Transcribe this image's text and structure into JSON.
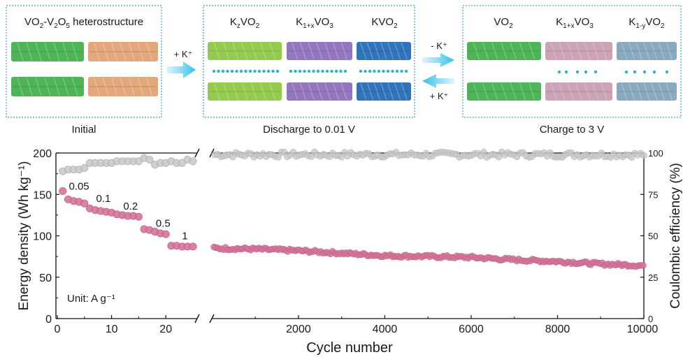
{
  "schematic": {
    "panels": [
      {
        "name": "initial",
        "title_parts": [
          "VO",
          "2",
          "-V",
          "2",
          "O",
          "5",
          " heterostructure"
        ],
        "caption": "Initial"
      },
      {
        "name": "discharge",
        "labels": [
          [
            "K",
            "z",
            "VO",
            "2"
          ],
          [
            "K",
            "1+x",
            "VO",
            "3"
          ],
          [
            "KVO",
            "2"
          ]
        ],
        "caption": "Discharge to 0.01 V"
      },
      {
        "name": "charge",
        "labels": [
          [
            "VO",
            "2"
          ],
          [
            "K",
            "1+x",
            "VO",
            "3"
          ],
          [
            "K",
            "1-y",
            "VO",
            "2"
          ]
        ],
        "caption": "Charge to 3 V"
      }
    ],
    "arrow_labels": {
      "first": "+ K⁺",
      "charge": "- K⁺",
      "discharge": "+ K⁺"
    },
    "colors": {
      "green_layer": "#3fae4a",
      "orange_layer": "#e0a070",
      "lime_layer": "#8cc63f",
      "purple_layer": "#8a6bb8",
      "blue_layer": "#1f68b4",
      "pink_layer": "#c79ab0",
      "steel_layer": "#7fa3b8",
      "k_ion": "#2ab5c0",
      "arrow": "#35c1ea"
    }
  },
  "chart_data": {
    "type": "scatter",
    "title": "",
    "xlabel": "Cycle number",
    "ylabel_left": "Energy density (Wh kg⁻¹)",
    "ylabel_right": "Coulombic efficiency (%)",
    "ylim_left": [
      0,
      200
    ],
    "ylim_right": [
      0,
      100
    ],
    "left_xlim": [
      0,
      25
    ],
    "right_xlim": [
      25,
      10000
    ],
    "left_xticks": [
      "0",
      "10",
      "20"
    ],
    "right_xticks": [
      "2000",
      "4000",
      "6000",
      "8000",
      "10000"
    ],
    "left_yticks": [
      "0",
      "50",
      "100",
      "150",
      "200"
    ],
    "right_yticks": [
      "0",
      "25",
      "50",
      "75",
      "100"
    ],
    "annotation_unit": "Unit: A g⁻¹",
    "rate_labels": [
      {
        "label": "0.05",
        "cycle": 4,
        "energy": 160
      },
      {
        "label": "0.1",
        "cycle": 8.5,
        "energy": 145
      },
      {
        "label": "0.2",
        "cycle": 13.5,
        "energy": 136
      },
      {
        "label": "0.5",
        "cycle": 19.5,
        "energy": 115
      },
      {
        "label": "1",
        "cycle": 23.5,
        "energy": 100
      }
    ],
    "series": [
      {
        "name": "Energy density",
        "axis": "left",
        "color": "#d4759a",
        "edge": "#b9547c",
        "rate_points": [
          [
            1,
            154
          ],
          [
            2,
            144
          ],
          [
            3,
            142
          ],
          [
            4,
            141
          ],
          [
            5,
            139
          ],
          [
            6,
            133
          ],
          [
            7,
            131
          ],
          [
            8,
            130
          ],
          [
            9,
            129
          ],
          [
            10,
            128
          ],
          [
            11,
            126
          ],
          [
            12,
            125
          ],
          [
            13,
            124
          ],
          [
            14,
            124
          ],
          [
            15,
            123
          ],
          [
            16,
            108
          ],
          [
            17,
            107
          ],
          [
            18,
            105
          ],
          [
            19,
            103
          ],
          [
            20,
            102
          ],
          [
            21,
            88
          ],
          [
            22,
            88
          ],
          [
            23,
            87
          ],
          [
            24,
            87
          ],
          [
            25,
            87
          ]
        ],
        "long_cycle_trend": [
          [
            25,
            85
          ],
          [
            1000,
            84
          ],
          [
            2000,
            82
          ],
          [
            3000,
            79
          ],
          [
            4000,
            76
          ],
          [
            5000,
            75
          ],
          [
            6000,
            74
          ],
          [
            7000,
            71
          ],
          [
            8000,
            69
          ],
          [
            9000,
            66
          ],
          [
            10000,
            64
          ]
        ]
      },
      {
        "name": "Coulombic efficiency",
        "axis": "right",
        "color": "#c8c8c8",
        "edge": "#a8a8a8",
        "rate_points": [
          [
            1,
            89
          ],
          [
            2,
            90
          ],
          [
            3,
            90
          ],
          [
            4,
            90
          ],
          [
            5,
            91
          ],
          [
            6,
            94
          ],
          [
            7,
            94
          ],
          [
            8,
            94
          ],
          [
            9,
            94
          ],
          [
            10,
            94
          ],
          [
            11,
            95
          ],
          [
            12,
            95
          ],
          [
            13,
            95
          ],
          [
            14,
            95
          ],
          [
            15,
            95
          ],
          [
            16,
            97
          ],
          [
            17,
            96
          ],
          [
            18,
            93
          ],
          [
            19,
            94
          ],
          [
            20,
            94
          ],
          [
            21,
            95
          ],
          [
            22,
            94
          ],
          [
            23,
            94
          ],
          [
            24,
            96
          ],
          [
            25,
            95
          ]
        ],
        "long_cycle_mean": 99
      }
    ]
  }
}
